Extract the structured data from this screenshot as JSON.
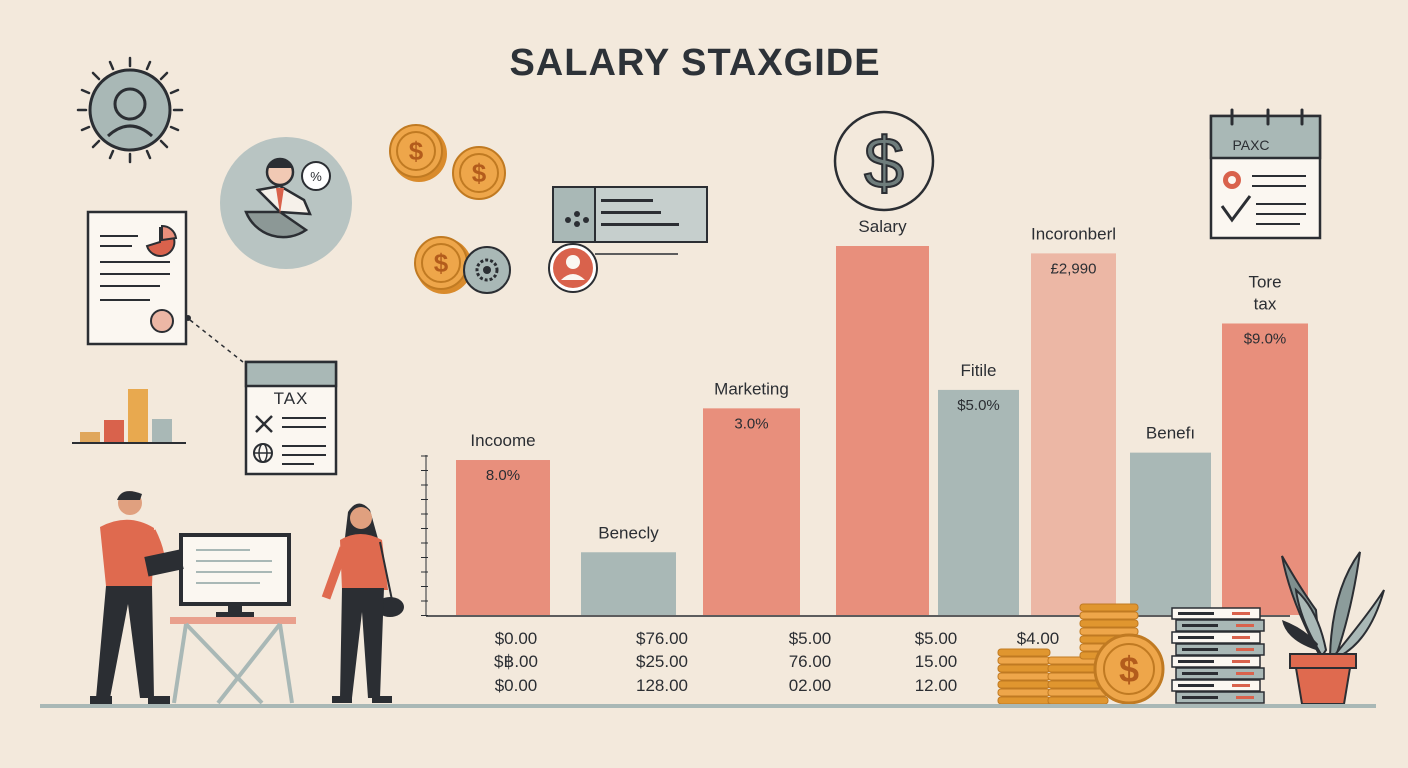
{
  "title": "SALARY STAXGIDE",
  "colors": {
    "background": "#f3e9dc",
    "coral": "#e88f7c",
    "salmon": "#e79b84",
    "pale_salmon": "#ecb7a5",
    "gray": "#a9b8b6",
    "dark": "#2b2e33"
  },
  "chart_data": {
    "type": "bar",
    "categories": [
      "Incoome",
      "Benecly",
      "Marketing",
      "Salary",
      "Fitile",
      "Incoronberl",
      "Benefı",
      "Tore tax"
    ],
    "category_lines": [
      [
        "Incoome"
      ],
      [
        "Benecly"
      ],
      [
        "Marketing"
      ],
      [
        "Salary"
      ],
      [
        "Fitile"
      ],
      [
        "Incoronberl"
      ],
      [
        "Benefı"
      ],
      [
        "Tore",
        "tax"
      ]
    ],
    "values": [
      42,
      17,
      56,
      100,
      61,
      98,
      44,
      79
    ],
    "value_unit": "relative bar height (no axis scale printed)",
    "data_labels": [
      "8.0%",
      "",
      "3.0%",
      "",
      "$5.0%",
      "£2,990",
      "",
      "$9.0%"
    ],
    "bar_colors": [
      "#e88f7c",
      "#a9b8b6",
      "#e88f7c",
      "#e88f7c",
      "#a9b8b6",
      "#ecb7a5",
      "#a9b8b6",
      "#e88f7c"
    ],
    "ylim": [
      0,
      100
    ],
    "grid": false,
    "legend": "none",
    "table": [
      [
        "$0.00",
        "$฿.00",
        "$0.00"
      ],
      [
        "$76.00",
        "$25.00",
        "128.00"
      ],
      [
        "$5.00",
        "76.00",
        "02.00"
      ],
      [
        "$5.00",
        "15.00",
        "12.00"
      ],
      [
        "$4.00",
        "",
        ""
      ]
    ]
  },
  "decor": {
    "tax_sheet_label": "TAX",
    "calendar_label": "PAXC",
    "icons": [
      "user-avatar-icon",
      "consultant-pie-icon",
      "dollar-coin-icon",
      "gear-icon",
      "id-card-icon",
      "document-pie-icon",
      "mini-bar-chart-icon",
      "tax-form-icon",
      "calendar-checklist-icon",
      "dollar-circle-icon",
      "coin-stack-icon",
      "book-stack-icon",
      "plant-icon",
      "man-at-computer-icon",
      "woman-icon"
    ]
  }
}
